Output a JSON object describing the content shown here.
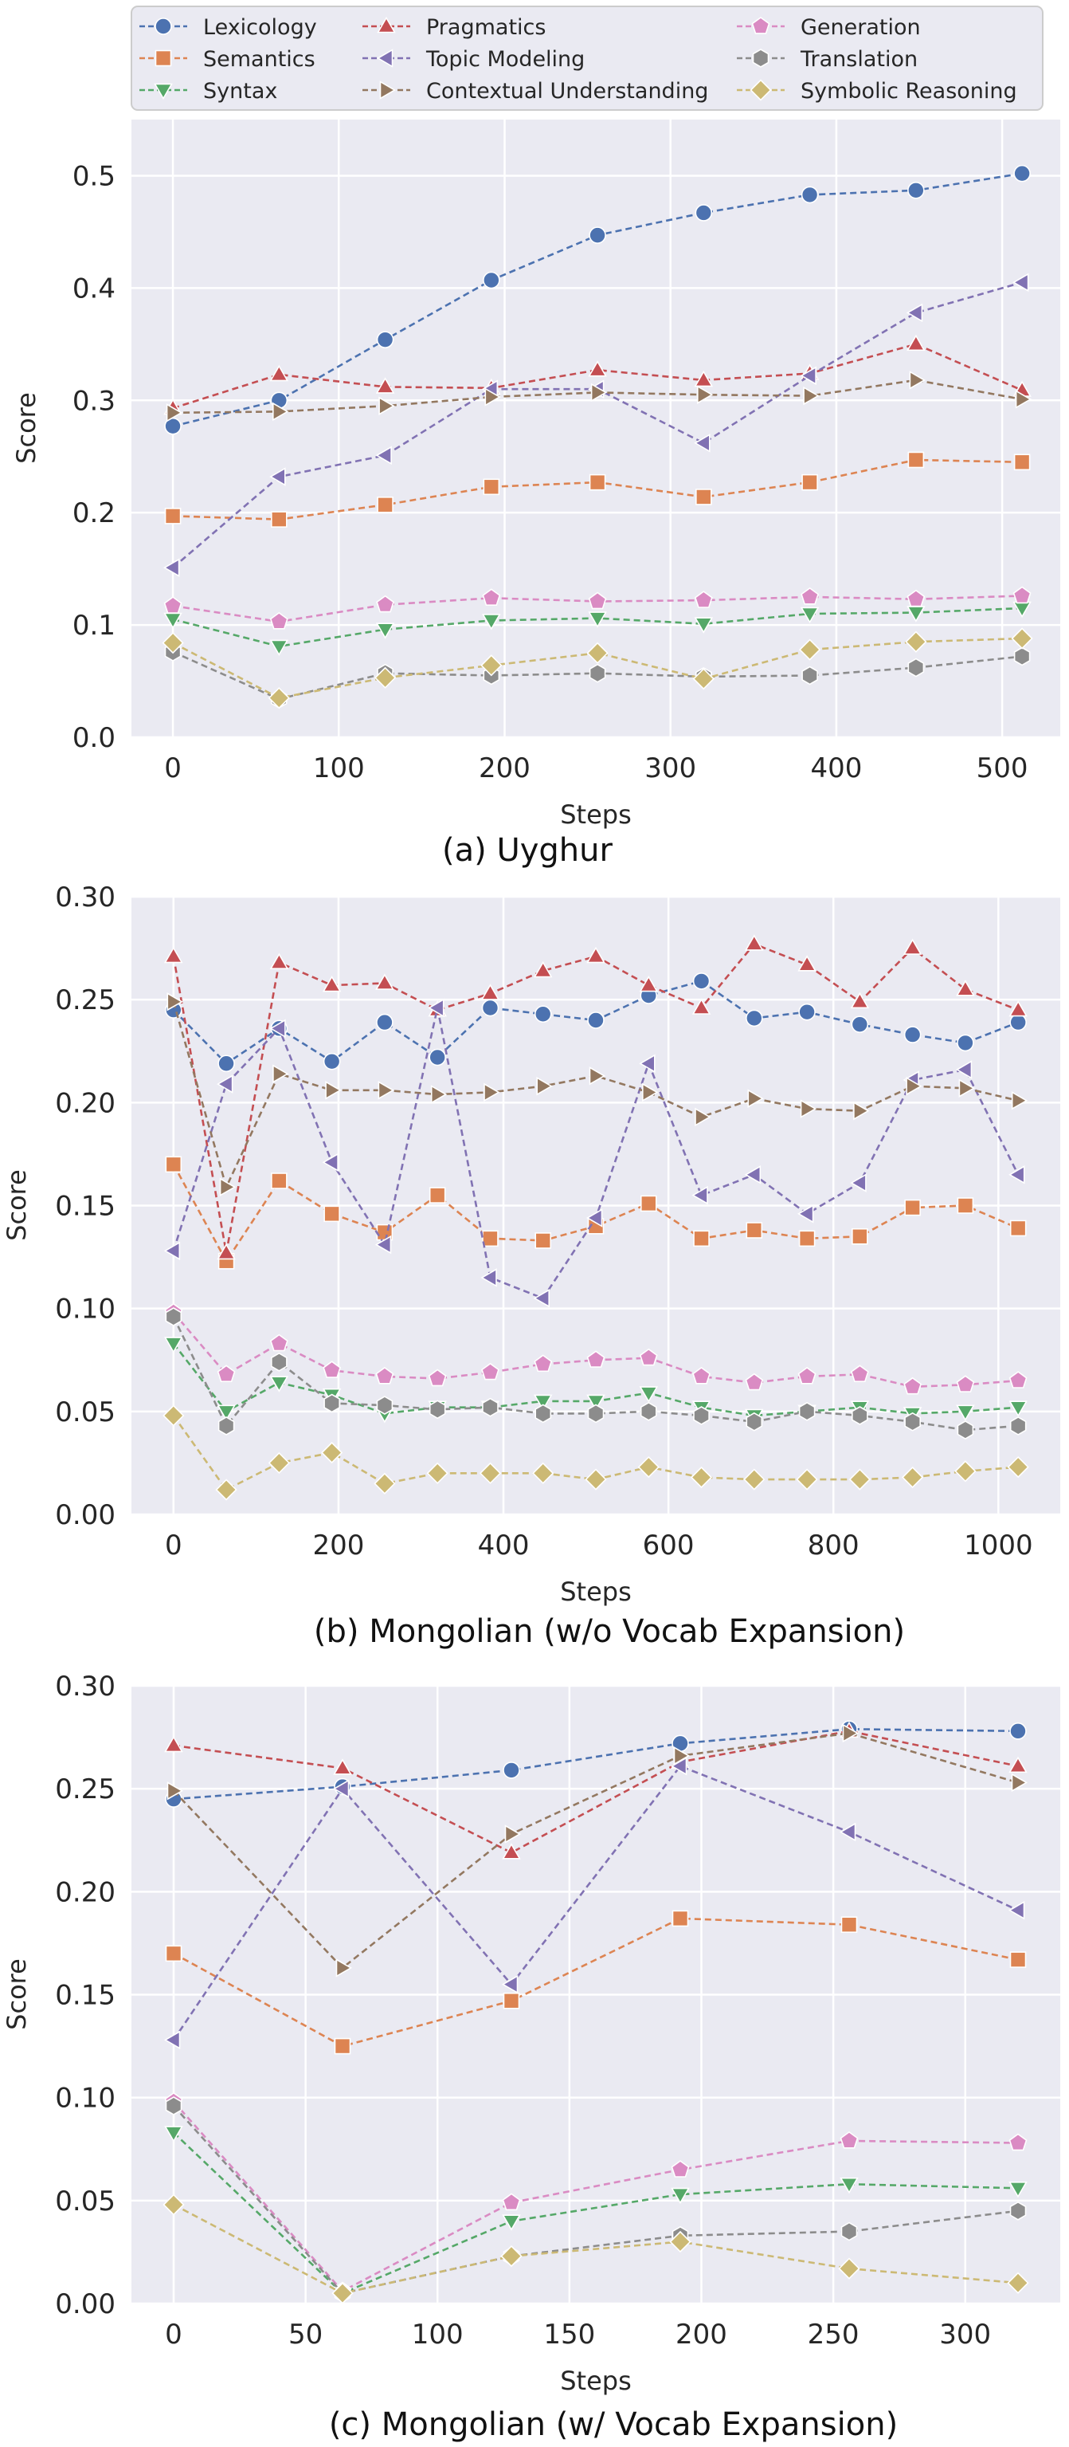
{
  "legend": {
    "entries": [
      {
        "name": "Lexicology",
        "color": "#4C72B0",
        "marker": "circle"
      },
      {
        "name": "Semantics",
        "color": "#DD8452",
        "marker": "square"
      },
      {
        "name": "Syntax",
        "color": "#55A868",
        "marker": "triangle-down"
      },
      {
        "name": "Pragmatics",
        "color": "#C44E52",
        "marker": "triangle-up"
      },
      {
        "name": "Topic Modeling",
        "color": "#8172B3",
        "marker": "triangle-left"
      },
      {
        "name": "Contextual Understanding",
        "color": "#937860",
        "marker": "triangle-right"
      },
      {
        "name": "Generation",
        "color": "#DA8BC3",
        "marker": "pentagon"
      },
      {
        "name": "Translation",
        "color": "#8C8C8C",
        "marker": "hexagon"
      },
      {
        "name": "Symbolic Reasoning",
        "color": "#CCB974",
        "marker": "diamond"
      }
    ]
  },
  "chart_data": [
    {
      "type": "line",
      "title": "(a) Uyghur",
      "xlabel": "Steps",
      "ylabel": "Score",
      "xlim": [
        -25,
        535
      ],
      "ylim": [
        0.0,
        0.55
      ],
      "xticks": [
        0,
        100,
        200,
        300,
        400,
        500
      ],
      "xtick_labels": [
        "0",
        "100",
        "200",
        "300",
        "400",
        "500"
      ],
      "yticks": [
        0.0,
        0.1,
        0.2,
        0.3,
        0.4,
        0.5
      ],
      "ytick_labels": [
        "0.0",
        "0.1",
        "0.2",
        "0.3",
        "0.4",
        "0.5"
      ],
      "x": [
        0,
        64,
        128,
        192,
        256,
        320,
        384,
        448,
        512
      ],
      "series": [
        {
          "name": "Lexicology",
          "values": [
            0.277,
            0.3,
            0.354,
            0.407,
            0.447,
            0.467,
            0.483,
            0.487,
            0.502
          ]
        },
        {
          "name": "Semantics",
          "values": [
            0.197,
            0.194,
            0.207,
            0.223,
            0.227,
            0.214,
            0.227,
            0.247,
            0.245
          ]
        },
        {
          "name": "Syntax",
          "values": [
            0.105,
            0.081,
            0.096,
            0.104,
            0.106,
            0.101,
            0.11,
            0.111,
            0.115
          ]
        },
        {
          "name": "Pragmatics",
          "values": [
            0.293,
            0.323,
            0.312,
            0.311,
            0.327,
            0.318,
            0.324,
            0.35,
            0.309
          ]
        },
        {
          "name": "Topic Modeling",
          "values": [
            0.151,
            0.232,
            0.251,
            0.31,
            0.31,
            0.262,
            0.322,
            0.378,
            0.405
          ]
        },
        {
          "name": "Contextual Understanding",
          "values": [
            0.289,
            0.29,
            0.295,
            0.303,
            0.307,
            0.305,
            0.304,
            0.318,
            0.301
          ]
        },
        {
          "name": "Generation",
          "values": [
            0.117,
            0.103,
            0.118,
            0.124,
            0.121,
            0.122,
            0.125,
            0.123,
            0.126
          ]
        },
        {
          "name": "Translation",
          "values": [
            0.076,
            0.034,
            0.057,
            0.055,
            0.057,
            0.054,
            0.055,
            0.062,
            0.072
          ]
        },
        {
          "name": "Symbolic Reasoning",
          "values": [
            0.084,
            0.035,
            0.053,
            0.064,
            0.075,
            0.052,
            0.078,
            0.085,
            0.088
          ]
        }
      ]
    },
    {
      "type": "line",
      "title": "(b) Mongolian (w/o Vocab Expansion)",
      "xlabel": "Steps",
      "ylabel": "Score",
      "xlim": [
        -51,
        1075
      ],
      "ylim": [
        0.0,
        0.3
      ],
      "xticks": [
        0,
        200,
        400,
        600,
        800,
        1000
      ],
      "xtick_labels": [
        "0",
        "200",
        "400",
        "600",
        "800",
        "1000"
      ],
      "yticks": [
        0.0,
        0.05,
        0.1,
        0.15,
        0.2,
        0.25,
        0.3
      ],
      "ytick_labels": [
        "0.00",
        "0.05",
        "0.10",
        "0.15",
        "0.20",
        "0.25",
        "0.30"
      ],
      "x": [
        0,
        64,
        128,
        192,
        256,
        320,
        384,
        448,
        512,
        576,
        640,
        704,
        768,
        832,
        896,
        960,
        1024
      ],
      "series": [
        {
          "name": "Lexicology",
          "values": [
            0.245,
            0.219,
            0.236,
            0.22,
            0.239,
            0.222,
            0.246,
            0.243,
            0.24,
            0.252,
            0.259,
            0.241,
            0.244,
            0.238,
            0.233,
            0.229,
            0.239
          ]
        },
        {
          "name": "Semantics",
          "values": [
            0.17,
            0.123,
            0.162,
            0.146,
            0.137,
            0.155,
            0.134,
            0.133,
            0.14,
            0.151,
            0.134,
            0.138,
            0.134,
            0.135,
            0.149,
            0.15,
            0.139
          ]
        },
        {
          "name": "Syntax",
          "values": [
            0.083,
            0.05,
            0.064,
            0.058,
            0.049,
            0.052,
            0.052,
            0.055,
            0.055,
            0.059,
            0.052,
            0.048,
            0.05,
            0.052,
            0.049,
            0.05,
            0.052
          ]
        },
        {
          "name": "Pragmatics",
          "values": [
            0.271,
            0.127,
            0.268,
            0.257,
            0.258,
            0.245,
            0.253,
            0.264,
            0.271,
            0.257,
            0.246,
            0.277,
            0.267,
            0.249,
            0.275,
            0.255,
            0.245
          ]
        },
        {
          "name": "Topic Modeling",
          "values": [
            0.128,
            0.209,
            0.236,
            0.171,
            0.131,
            0.246,
            0.115,
            0.105,
            0.144,
            0.219,
            0.155,
            0.165,
            0.146,
            0.161,
            0.211,
            0.216,
            0.165
          ]
        },
        {
          "name": "Contextual Understanding",
          "values": [
            0.249,
            0.159,
            0.214,
            0.206,
            0.206,
            0.204,
            0.205,
            0.208,
            0.213,
            0.205,
            0.193,
            0.202,
            0.197,
            0.196,
            0.208,
            0.207,
            0.201
          ]
        },
        {
          "name": "Generation",
          "values": [
            0.098,
            0.068,
            0.083,
            0.07,
            0.067,
            0.066,
            0.069,
            0.073,
            0.075,
            0.076,
            0.067,
            0.064,
            0.067,
            0.068,
            0.062,
            0.063,
            0.065
          ]
        },
        {
          "name": "Translation",
          "values": [
            0.096,
            0.043,
            0.074,
            0.054,
            0.053,
            0.051,
            0.052,
            0.049,
            0.049,
            0.05,
            0.048,
            0.045,
            0.05,
            0.048,
            0.045,
            0.041,
            0.043
          ]
        },
        {
          "name": "Symbolic Reasoning",
          "values": [
            0.048,
            0.012,
            0.025,
            0.03,
            0.015,
            0.02,
            0.02,
            0.02,
            0.017,
            0.023,
            0.018,
            0.017,
            0.017,
            0.017,
            0.018,
            0.021,
            0.023
          ]
        }
      ]
    },
    {
      "type": "line",
      "title": "(c) Mongolian (w/ Vocab Expansion)",
      "xlabel": "Steps",
      "ylabel": "Score",
      "xlim": [
        -16,
        336
      ],
      "ylim": [
        0.0,
        0.3
      ],
      "xticks": [
        0,
        50,
        100,
        150,
        200,
        250,
        300
      ],
      "xtick_labels": [
        "0",
        "50",
        "100",
        "150",
        "200",
        "250",
        "300"
      ],
      "yticks": [
        0.0,
        0.05,
        0.1,
        0.15,
        0.2,
        0.25,
        0.3
      ],
      "ytick_labels": [
        "0.00",
        "0.05",
        "0.10",
        "0.15",
        "0.20",
        "0.25",
        "0.30"
      ],
      "x": [
        0,
        64,
        128,
        192,
        256,
        320
      ],
      "series": [
        {
          "name": "Lexicology",
          "values": [
            0.245,
            0.251,
            0.259,
            0.272,
            0.279,
            0.278
          ]
        },
        {
          "name": "Semantics",
          "values": [
            0.17,
            0.125,
            0.147,
            0.187,
            0.184,
            0.167
          ]
        },
        {
          "name": "Syntax",
          "values": [
            0.083,
            0.005,
            0.04,
            0.053,
            0.058,
            0.056
          ]
        },
        {
          "name": "Pragmatics",
          "values": [
            0.271,
            0.26,
            0.219,
            0.263,
            0.278,
            0.261
          ]
        },
        {
          "name": "Topic Modeling",
          "values": [
            0.128,
            0.25,
            0.155,
            0.261,
            0.229,
            0.191
          ]
        },
        {
          "name": "Contextual Understanding",
          "values": [
            0.249,
            0.163,
            0.228,
            0.266,
            0.277,
            0.253
          ]
        },
        {
          "name": "Generation",
          "values": [
            0.098,
            0.006,
            0.049,
            0.065,
            0.079,
            0.078
          ]
        },
        {
          "name": "Translation",
          "values": [
            0.096,
            0.005,
            0.023,
            0.033,
            0.035,
            0.045
          ]
        },
        {
          "name": "Symbolic Reasoning",
          "values": [
            0.048,
            0.005,
            0.023,
            0.03,
            0.017,
            0.01
          ]
        }
      ]
    }
  ]
}
